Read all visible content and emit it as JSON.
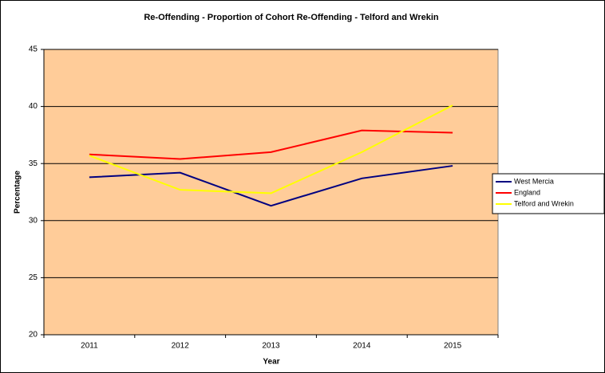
{
  "chart_data": {
    "type": "line",
    "title": "Re-Offending - Proportion of Cohort Re-Offending - Telford and Wrekin",
    "x_label": "Year",
    "y_label": "Percentage",
    "categories": [
      "2011",
      "2012",
      "2013",
      "2014",
      "2015"
    ],
    "series": [
      {
        "name": "West Mercia",
        "color": "#000080",
        "values": [
          33.8,
          34.2,
          31.3,
          33.7,
          34.8
        ]
      },
      {
        "name": "England",
        "color": "#ff0000",
        "values": [
          35.8,
          35.4,
          36.0,
          37.9,
          37.7
        ]
      },
      {
        "name": "Telford and Wrekin",
        "color": "#ffff00",
        "values": [
          35.7,
          32.7,
          32.4,
          36.0,
          40.1
        ]
      }
    ],
    "ylim": [
      20,
      45
    ],
    "yticks": [
      20,
      25,
      30,
      35,
      40,
      45
    ],
    "grid": true,
    "legend": "right",
    "plot_background": "#ffcc99"
  }
}
